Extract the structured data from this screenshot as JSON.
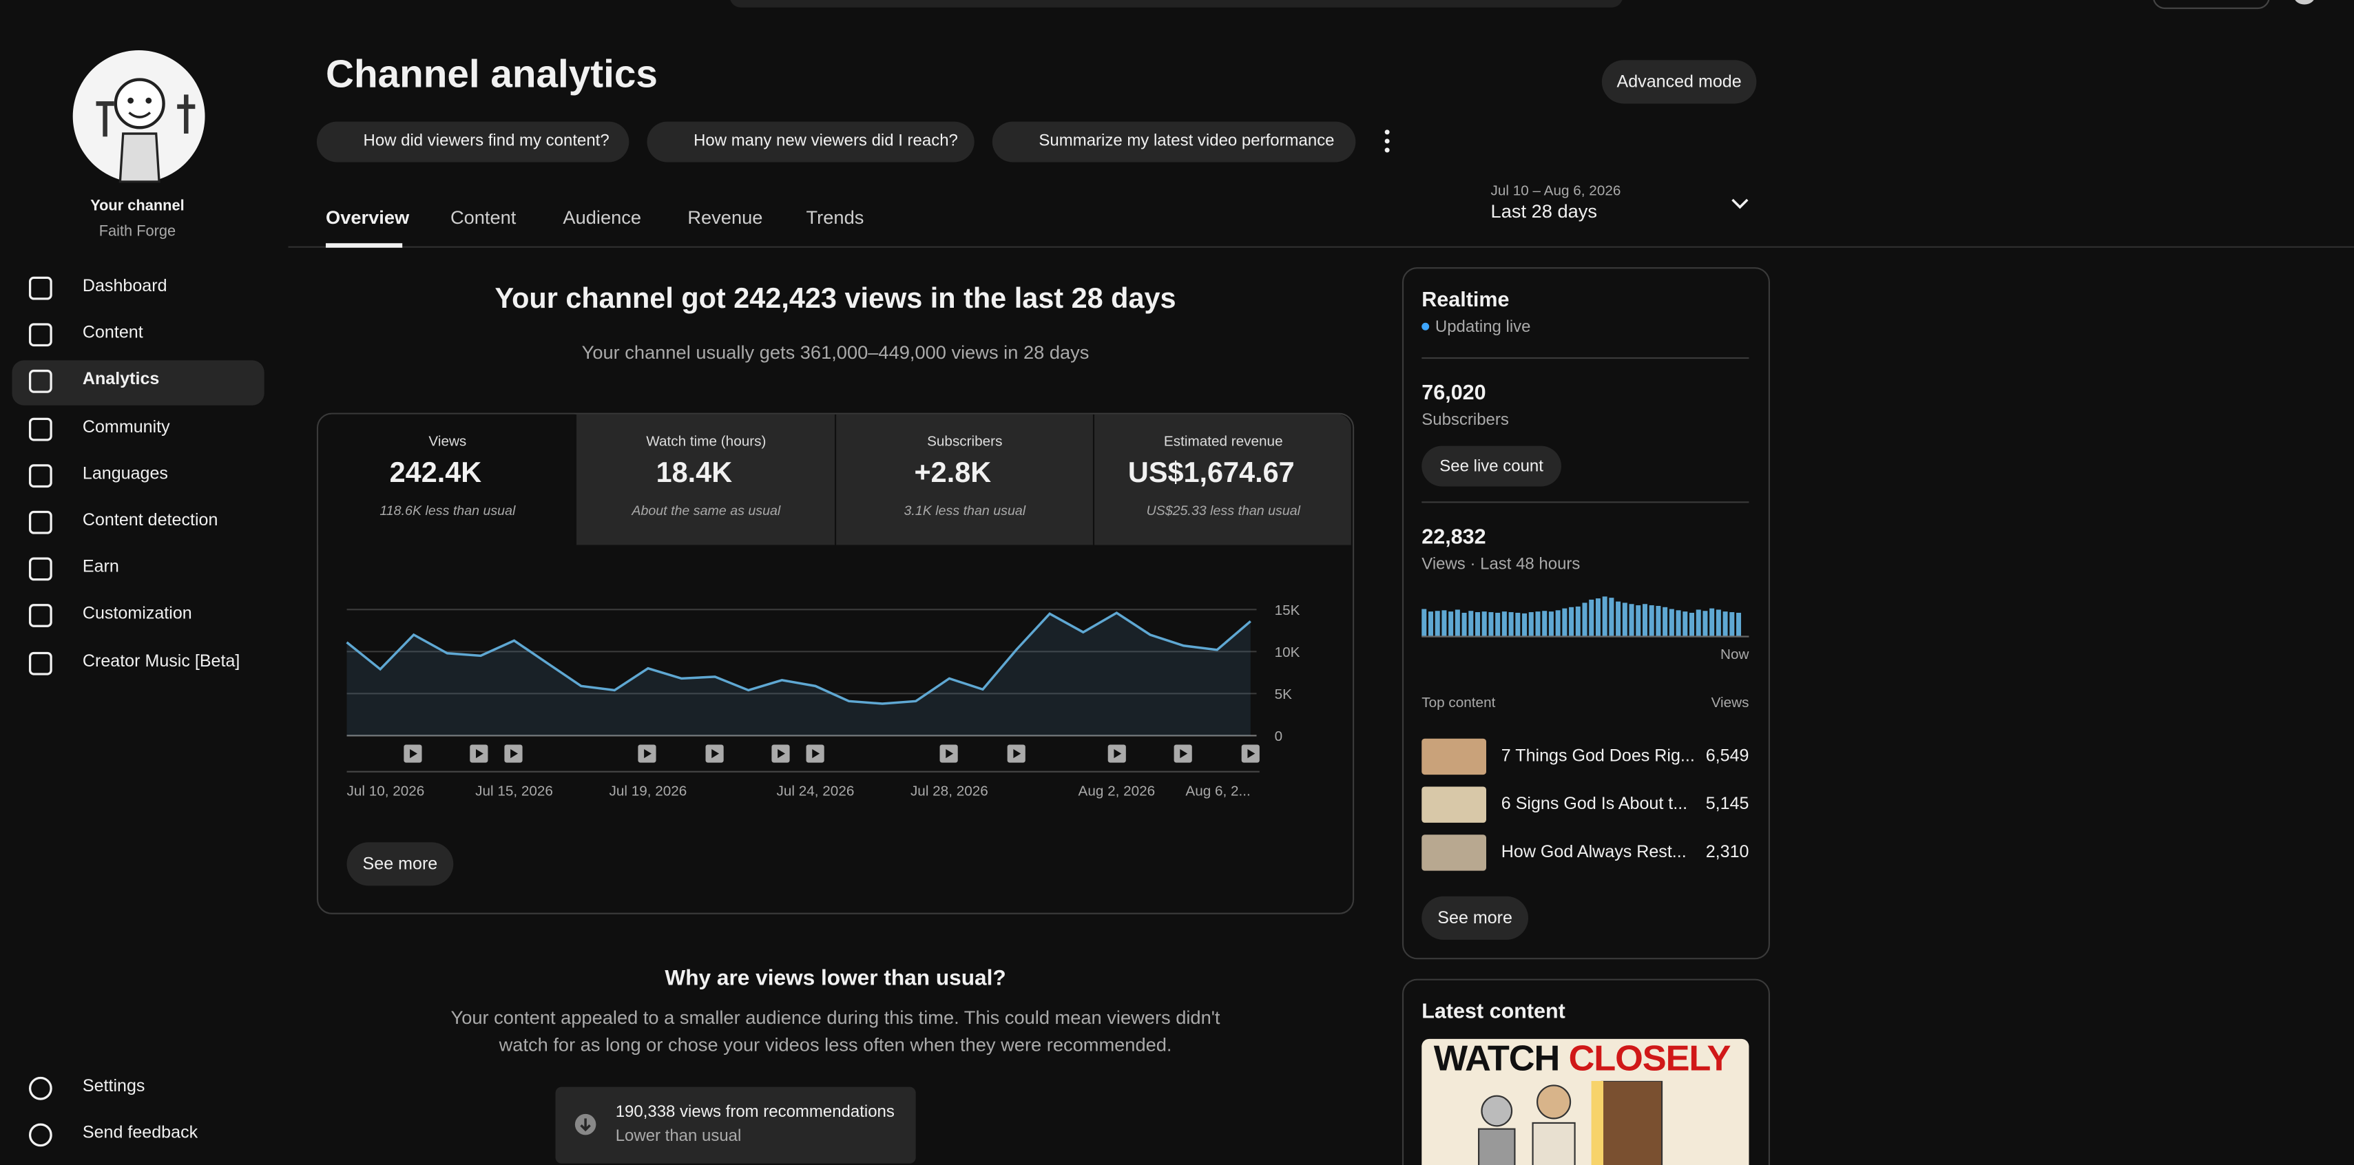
{
  "sidebar": {
    "channel_label": "Your channel",
    "channel_name": "Faith Forge",
    "nav": [
      "Dashboard",
      "Content",
      "Analytics",
      "Community",
      "Languages",
      "Content detection",
      "Earn",
      "Customization",
      "Creator Music [Beta]"
    ],
    "footer": [
      "Settings",
      "Send feedback"
    ]
  },
  "header": {
    "title": "Channel analytics",
    "advanced": "Advanced mode",
    "suggestions": [
      "How did viewers find my content?",
      "How many new viewers did I reach?",
      "Summarize my latest video performance"
    ],
    "tabs": [
      "Overview",
      "Content",
      "Audience",
      "Revenue",
      "Trends"
    ],
    "date_range": "Jul 10 – Aug 6, 2026",
    "period": "Last 28 days"
  },
  "summary": {
    "headline": "Your channel got 242,423 views in the last 28 days",
    "subline": "Your channel usually gets 361,000–449,000 views in 28 days"
  },
  "metrics": [
    {
      "label": "Views",
      "value": "242.4K",
      "note": "118.6K less than usual"
    },
    {
      "label": "Watch time (hours)",
      "value": "18.4K",
      "note": "About the same as usual"
    },
    {
      "label": "Subscribers",
      "value": "+2.8K",
      "note": "3.1K less than usual"
    },
    {
      "label": "Estimated revenue",
      "value": "US$1,674.67",
      "note": "US$25.33 less than usual"
    }
  ],
  "chart_data": {
    "type": "line",
    "categories": [
      "Jul 10, 2026",
      null,
      null,
      null,
      null,
      "Jul 15, 2026",
      null,
      null,
      null,
      "Jul 19, 2026",
      null,
      null,
      null,
      null,
      "Jul 24, 2026",
      null,
      null,
      null,
      "Jul 28, 2026",
      null,
      null,
      null,
      null,
      "Aug 2, 2026",
      null,
      null,
      null,
      "Aug 6, 2..."
    ],
    "values": [
      11100,
      7900,
      12000,
      9800,
      9500,
      11300,
      8600,
      5900,
      5400,
      8000,
      6800,
      7000,
      5400,
      6600,
      5900,
      4100,
      3800,
      4100,
      6800,
      5500,
      10200,
      14500,
      12300,
      14600,
      12000,
      10700,
      10200,
      13600
    ],
    "color": "#5fa8d3",
    "ylim": [
      0,
      15000
    ],
    "yticks": [
      0,
      {
        "value": 5000,
        "label": "5K"
      },
      {
        "value": 10000,
        "label": "10K"
      },
      {
        "value": 15000,
        "label": "15K"
      }
    ],
    "grid": true
  },
  "see_more": "See more",
  "why": {
    "title": "Why are views lower than usual?",
    "body": [
      "Your content appealed to a smaller audience during this time. This could mean viewers didn't",
      "watch for as long or chose your videos less often when they were recommended."
    ],
    "stat": "190,338 views from recommendations",
    "stat_note": "Lower than usual"
  },
  "realtime": {
    "title": "Realtime",
    "status": "Updating live",
    "subscribers": "76,020",
    "subscribers_label": "Subscribers",
    "live_button": "See live count",
    "views": "22,832",
    "views_label": "Views · Last 48 hours",
    "bars": [
      440,
      400,
      410,
      420,
      400,
      430,
      380,
      410,
      390,
      400,
      390,
      380,
      400,
      390,
      380,
      370,
      390,
      400,
      410,
      400,
      420,
      450,
      470,
      480,
      540,
      590,
      610,
      640,
      620,
      560,
      540,
      520,
      500,
      520,
      500,
      490,
      470,
      440,
      420,
      400,
      380,
      430,
      410,
      450,
      430,
      400,
      390,
      380
    ],
    "now": "Now",
    "top_header": "Top content",
    "views_header": "Views",
    "top": [
      {
        "title": "7 Things God Does Rig...",
        "views": "6,549"
      },
      {
        "title": "6 Signs God Is About t...",
        "views": "5,145"
      },
      {
        "title": "How God Always Rest...",
        "views": "2,310"
      }
    ],
    "see_more": "See more"
  },
  "latest": {
    "title": "Latest content",
    "thumb_text": [
      "WATCH",
      "CLOSELY"
    ]
  }
}
